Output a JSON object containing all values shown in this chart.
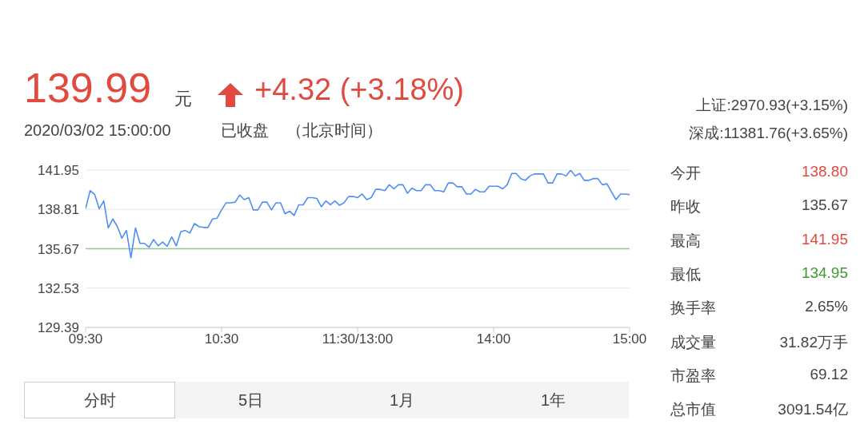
{
  "chart_data": {
    "type": "line",
    "categories": [
      "09:30",
      null,
      null,
      null,
      null,
      null,
      null,
      null,
      null,
      null,
      null,
      null,
      null,
      null,
      null,
      null,
      null,
      null,
      null,
      null,
      null,
      null,
      null,
      null,
      null,
      null,
      null,
      null,
      null,
      null,
      "10:30",
      null,
      null,
      null,
      null,
      null,
      null,
      null,
      null,
      null,
      null,
      null,
      null,
      null,
      null,
      null,
      null,
      null,
      null,
      null,
      null,
      null,
      null,
      null,
      null,
      null,
      null,
      null,
      null,
      null,
      "11:30/13:00",
      null,
      null,
      null,
      null,
      null,
      null,
      null,
      null,
      null,
      null,
      null,
      null,
      null,
      null,
      null,
      null,
      null,
      null,
      null,
      null,
      null,
      null,
      null,
      null,
      null,
      null,
      null,
      null,
      null,
      "14:00",
      null,
      null,
      null,
      null,
      null,
      null,
      null,
      null,
      null,
      null,
      null,
      null,
      null,
      null,
      null,
      null,
      null,
      null,
      null,
      null,
      null,
      null,
      null,
      null,
      null,
      null,
      null,
      null,
      null,
      "15:00"
    ],
    "series": [
      {
        "color": "#4f8ef7",
        "values": [
          138.87,
          140.31,
          140.0,
          138.87,
          139.49,
          137.33,
          138.05,
          137.44,
          136.51,
          137.13,
          134.95,
          137.33,
          136.1,
          136.1,
          135.79,
          136.41,
          135.9,
          136.2,
          135.86,
          136.62,
          135.9,
          137.03,
          137.13,
          136.92,
          137.68,
          137.44,
          137.37,
          137.37,
          138.05,
          138.11,
          138.77,
          139.34,
          139.34,
          139.39,
          139.96,
          139.59,
          139.75,
          138.77,
          138.77,
          139.39,
          139.39,
          138.77,
          139.34,
          139.34,
          138.46,
          138.67,
          138.32,
          139.18,
          139.18,
          139.75,
          139.75,
          139.69,
          139.02,
          139.49,
          139.18,
          139.49,
          139.14,
          139.34,
          139.84,
          139.84,
          139.75,
          140.04,
          139.59,
          139.75,
          140.41,
          140.41,
          140.31,
          140.78,
          140.45,
          140.78,
          140.78,
          140.1,
          140.51,
          140.31,
          140.31,
          140.78,
          140.78,
          140.31,
          140.31,
          140.21,
          140.92,
          140.92,
          140.62,
          140.62,
          140.04,
          140.04,
          140.41,
          140.21,
          140.21,
          140.66,
          140.66,
          140.66,
          140.45,
          140.78,
          141.68,
          141.68,
          141.27,
          141.13,
          141.48,
          141.64,
          141.64,
          141.64,
          140.92,
          140.92,
          141.64,
          141.64,
          141.48,
          141.95,
          141.48,
          141.68,
          141.13,
          141.13,
          141.27,
          141.27,
          140.78,
          140.86,
          140.21,
          139.59,
          140.04,
          140.04,
          139.99
        ]
      }
    ],
    "ylim": [
      129.39,
      141.95
    ],
    "yticks": [
      129.39,
      132.53,
      135.67,
      138.81,
      141.95
    ],
    "grid": "y",
    "marker": "none",
    "line_style": "solid",
    "ref_lines": [
      {
        "axis": "y",
        "value": 135.67,
        "color": "#8cc98a"
      }
    ],
    "annotations": [
      "139.99",
      "元",
      "+4.32 (+3.18%)",
      "2020/03/02 15:00:00",
      "已收盘",
      "（北京时间）",
      "上证:2970.93(+3.15%)",
      "深成:11381.76(+3.65%)",
      "今开",
      "138.80",
      "昨收",
      "135.67",
      "最高",
      "141.95",
      "最低",
      "134.95",
      "换手率",
      "2.65%",
      "成交量",
      "31.82万手",
      "市盈率",
      "69.12",
      "总市值",
      "3091.54亿",
      "分时",
      "5日",
      "1月",
      "1年"
    ]
  }
}
